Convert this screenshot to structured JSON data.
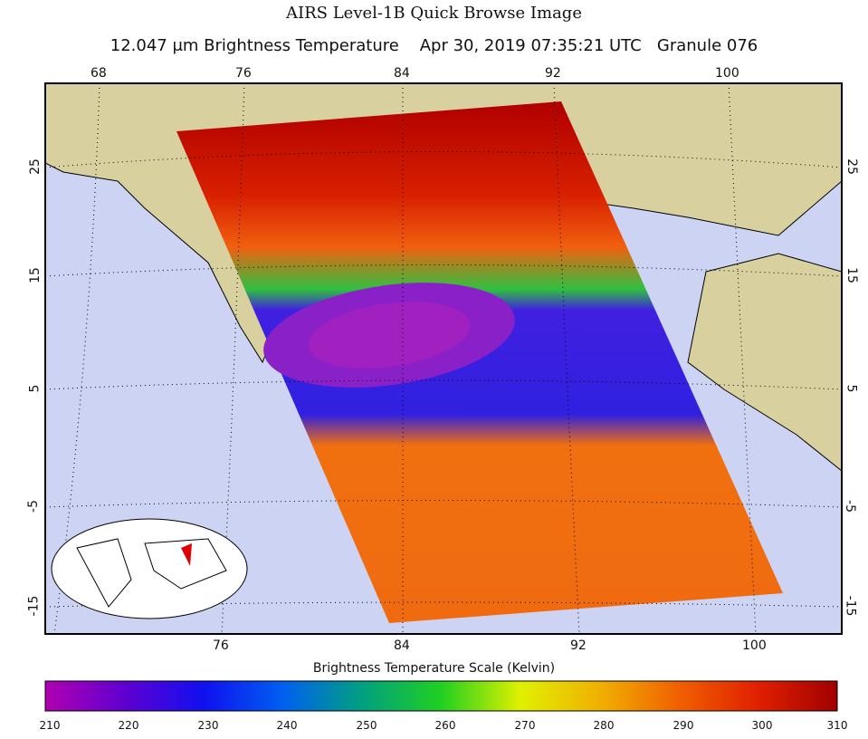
{
  "title": "AIRS Level-1B Quick Browse Image",
  "subtitle": {
    "wavelength": "12.047 μm Brightness Temperature",
    "datetime": "Apr 30, 2019 07:35:21 UTC",
    "granule": "Granule 076"
  },
  "map": {
    "top_lon_labels": [
      "68",
      "76",
      "84",
      "92",
      "100"
    ],
    "bottom_lon_labels": [
      "76",
      "84",
      "92",
      "100"
    ],
    "lat_labels": [
      "25",
      "15",
      "5",
      "-5",
      "-15"
    ],
    "colors": {
      "ocean": "#cdd3f2",
      "land": "#d9d0a0"
    }
  },
  "colorbar": {
    "title": "Brightness Temperature Scale (Kelvin)",
    "ticks": [
      "210",
      "220",
      "230",
      "240",
      "250",
      "260",
      "270",
      "280",
      "290",
      "300",
      "310"
    ],
    "range": [
      210,
      310
    ],
    "colors": [
      "#b000b0",
      "#6000d0",
      "#1010f0",
      "#0060f0",
      "#00a080",
      "#20d020",
      "#e0f000",
      "#f0b000",
      "#f06000",
      "#e02000",
      "#a00000"
    ]
  }
}
